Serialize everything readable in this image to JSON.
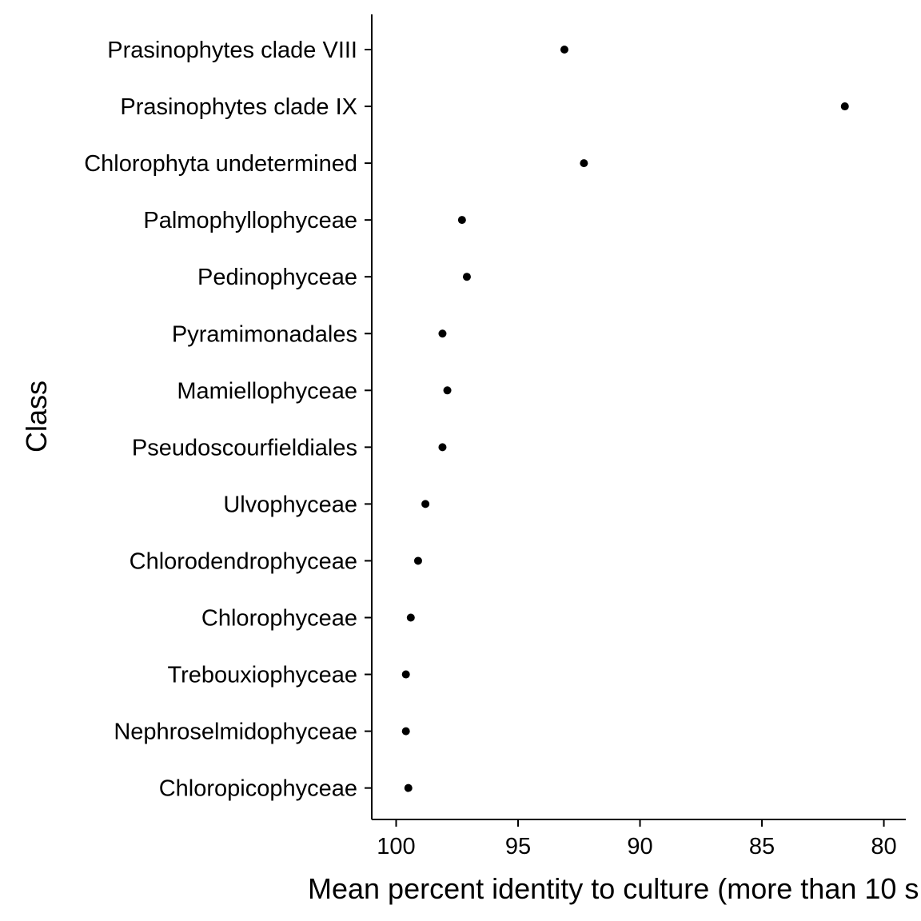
{
  "chart_data": {
    "type": "scatter",
    "title": "",
    "xlabel": "Mean percent identity to culture (more than 10 s",
    "ylabel": "Class",
    "xlim": [
      101,
      79.1
    ],
    "x_reversed": true,
    "x_ticks": [
      100,
      95,
      90,
      85,
      80
    ],
    "x_tick_labels": [
      "100",
      "95",
      "90",
      "85",
      "80"
    ],
    "grid": false,
    "legend": "none",
    "point_color": "#000000",
    "categories": [
      "Prasinophytes clade VIII",
      "Prasinophytes clade IX",
      "Chlorophyta undetermined",
      "Palmophyllophyceae",
      "Pedinophyceae",
      "Pyramimonadales",
      "Mamiellophyceae",
      "Pseudoscourfieldiales",
      "Ulvophyceae",
      "Chlorodendrophyceae",
      "Chlorophyceae",
      "Trebouxiophyceae",
      "Nephroselmidophyceae",
      "Chloropicophyceae"
    ],
    "values": [
      93.1,
      81.6,
      92.3,
      97.3,
      97.1,
      98.1,
      97.9,
      98.1,
      98.8,
      99.1,
      99.4,
      99.6,
      99.6,
      99.5
    ]
  }
}
